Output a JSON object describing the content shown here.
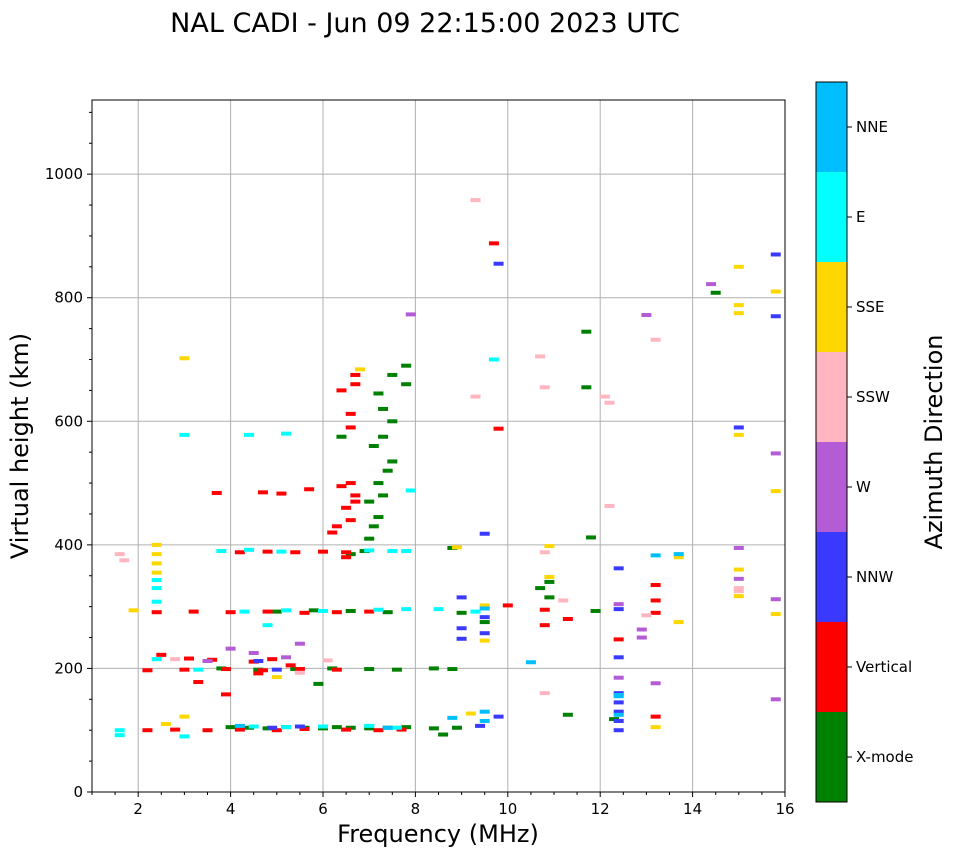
{
  "chart_data": {
    "type": "scatter",
    "title": "NAL CADI - Jun 09 22:15:00 2023 UTC",
    "xlabel": "Frequency (MHz)",
    "ylabel": "Virtual height (km)",
    "xlim": [
      1,
      16
    ],
    "ylim": [
      0,
      1120
    ],
    "xticks": [
      2,
      4,
      6,
      8,
      10,
      12,
      14,
      16
    ],
    "xtick_labels": [
      "2",
      "4",
      "6",
      "8",
      "10",
      "12",
      "14",
      "16"
    ],
    "yticks": [
      0,
      200,
      400,
      600,
      800,
      1000
    ],
    "ytick_labels": [
      "0",
      "200",
      "400",
      "600",
      "800",
      "1000"
    ],
    "grid": true,
    "colorbar": {
      "label": "Azimuth Direction",
      "categories": [
        "X-mode",
        "Vertical",
        "NNW",
        "W",
        "SSW",
        "SSE",
        "E",
        "NNE"
      ],
      "colors": {
        "X-mode": "#008000",
        "Vertical": "#ff0000",
        "NNW": "#3a3aff",
        "W": "#b45cd6",
        "SSW": "#ffb6c1",
        "SSE": "#ffd700",
        "E": "#00ffff",
        "NNE": "#00bfff"
      }
    },
    "series": [
      {
        "name": "X-mode",
        "points": [
          [
            4.0,
            105
          ],
          [
            4.4,
            104
          ],
          [
            4.8,
            103
          ],
          [
            5.2,
            105
          ],
          [
            5.6,
            104
          ],
          [
            6.0,
            103
          ],
          [
            6.3,
            105
          ],
          [
            6.6,
            104
          ],
          [
            7.0,
            103
          ],
          [
            7.4,
            104
          ],
          [
            7.8,
            105
          ],
          [
            8.4,
            103
          ],
          [
            8.9,
            104
          ],
          [
            8.6,
            93
          ],
          [
            11.3,
            125
          ],
          [
            12.3,
            118
          ],
          [
            3.8,
            200
          ],
          [
            4.6,
            198
          ],
          [
            5.4,
            199
          ],
          [
            6.2,
            200
          ],
          [
            7.0,
            199
          ],
          [
            7.6,
            198
          ],
          [
            8.4,
            200
          ],
          [
            8.8,
            199
          ],
          [
            5.9,
            175
          ],
          [
            5.0,
            292
          ],
          [
            5.8,
            294
          ],
          [
            6.6,
            293
          ],
          [
            7.4,
            291
          ],
          [
            9.0,
            290
          ],
          [
            9.5,
            275
          ],
          [
            10.7,
            330
          ],
          [
            10.9,
            315
          ],
          [
            11.9,
            293
          ],
          [
            6.6,
            385
          ],
          [
            6.9,
            390
          ],
          [
            7.0,
            410
          ],
          [
            7.1,
            430
          ],
          [
            7.2,
            445
          ],
          [
            7.0,
            470
          ],
          [
            7.3,
            480
          ],
          [
            7.2,
            500
          ],
          [
            7.4,
            520
          ],
          [
            7.5,
            535
          ],
          [
            7.1,
            560
          ],
          [
            7.3,
            575
          ],
          [
            7.5,
            600
          ],
          [
            7.3,
            620
          ],
          [
            7.2,
            645
          ],
          [
            7.8,
            660
          ],
          [
            7.5,
            675
          ],
          [
            7.8,
            690
          ],
          [
            6.4,
            575
          ],
          [
            8.8,
            395
          ],
          [
            11.8,
            412
          ],
          [
            10.9,
            340
          ],
          [
            11.7,
            655
          ],
          [
            11.7,
            745
          ],
          [
            14.5,
            808
          ]
        ]
      },
      {
        "name": "Vertical",
        "points": [
          [
            2.2,
            100
          ],
          [
            2.8,
            101
          ],
          [
            3.5,
            100
          ],
          [
            4.2,
            101
          ],
          [
            5.0,
            100
          ],
          [
            5.6,
            102
          ],
          [
            6.5,
            101
          ],
          [
            7.2,
            100
          ],
          [
            7.7,
            101
          ],
          [
            2.2,
            197
          ],
          [
            3.0,
            198
          ],
          [
            3.9,
            199
          ],
          [
            4.7,
            197
          ],
          [
            5.5,
            199
          ],
          [
            6.3,
            198
          ],
          [
            2.5,
            222
          ],
          [
            3.1,
            216
          ],
          [
            3.6,
            214
          ],
          [
            4.5,
            211
          ],
          [
            4.9,
            215
          ],
          [
            5.3,
            205
          ],
          [
            3.3,
            178
          ],
          [
            3.9,
            158
          ],
          [
            4.6,
            192
          ],
          [
            2.4,
            291
          ],
          [
            3.2,
            292
          ],
          [
            4.0,
            291
          ],
          [
            4.8,
            292
          ],
          [
            5.6,
            290
          ],
          [
            6.3,
            291
          ],
          [
            7.0,
            292
          ],
          [
            4.2,
            388
          ],
          [
            4.8,
            389
          ],
          [
            5.4,
            388
          ],
          [
            6.0,
            389
          ],
          [
            6.5,
            388
          ],
          [
            6.5,
            380
          ],
          [
            3.7,
            484
          ],
          [
            4.7,
            485
          ],
          [
            5.1,
            483
          ],
          [
            5.7,
            490
          ],
          [
            6.4,
            495
          ],
          [
            6.6,
            500
          ],
          [
            6.7,
            480
          ],
          [
            6.2,
            420
          ],
          [
            6.3,
            430
          ],
          [
            6.6,
            440
          ],
          [
            6.5,
            460
          ],
          [
            6.7,
            470
          ],
          [
            6.6,
            590
          ],
          [
            6.6,
            612
          ],
          [
            6.7,
            660
          ],
          [
            6.7,
            675
          ],
          [
            6.4,
            650
          ],
          [
            9.7,
            888
          ],
          [
            9.8,
            588
          ],
          [
            10.8,
            295
          ],
          [
            10.8,
            270
          ],
          [
            11.3,
            280
          ],
          [
            12.4,
            247
          ],
          [
            13.2,
            290
          ],
          [
            13.2,
            310
          ],
          [
            13.2,
            122
          ],
          [
            10.0,
            302
          ],
          [
            13.2,
            335
          ]
        ]
      },
      {
        "name": "NNW",
        "points": [
          [
            4.9,
            104
          ],
          [
            5.5,
            106
          ],
          [
            9.4,
            107
          ],
          [
            9.8,
            122
          ],
          [
            12.4,
            100
          ],
          [
            12.4,
            115
          ],
          [
            12.4,
            130
          ],
          [
            12.4,
            145
          ],
          [
            12.4,
            160
          ],
          [
            12.4,
            218
          ],
          [
            9.0,
            265
          ],
          [
            9.0,
            315
          ],
          [
            9.5,
            257
          ],
          [
            9.0,
            248
          ],
          [
            9.5,
            283
          ],
          [
            12.4,
            296
          ],
          [
            12.4,
            362
          ],
          [
            9.5,
            418
          ],
          [
            9.8,
            855
          ],
          [
            15.0,
            590
          ],
          [
            15.8,
            770
          ],
          [
            15.8,
            870
          ],
          [
            4.6,
            212
          ],
          [
            5.0,
            198
          ]
        ]
      },
      {
        "name": "W",
        "points": [
          [
            4.0,
            232
          ],
          [
            4.5,
            225
          ],
          [
            5.2,
            218
          ],
          [
            3.5,
            212
          ],
          [
            5.5,
            240
          ],
          [
            12.4,
            304
          ],
          [
            12.4,
            185
          ],
          [
            12.9,
            250
          ],
          [
            13.2,
            176
          ],
          [
            12.9,
            263
          ],
          [
            13.0,
            772
          ],
          [
            14.4,
            822
          ],
          [
            15.0,
            345
          ],
          [
            15.0,
            395
          ],
          [
            15.8,
            548
          ],
          [
            15.8,
            150
          ],
          [
            15.8,
            312
          ],
          [
            7.9,
            773
          ]
        ]
      },
      {
        "name": "SSW",
        "points": [
          [
            1.6,
            385
          ],
          [
            1.7,
            375
          ],
          [
            2.8,
            215
          ],
          [
            5.5,
            193
          ],
          [
            6.1,
            213
          ],
          [
            9.3,
            958
          ],
          [
            9.3,
            640
          ],
          [
            10.7,
            705
          ],
          [
            10.8,
            655
          ],
          [
            10.8,
            388
          ],
          [
            10.8,
            160
          ],
          [
            12.1,
            640
          ],
          [
            12.2,
            630
          ],
          [
            12.2,
            463
          ],
          [
            13.2,
            732
          ],
          [
            13.0,
            286
          ],
          [
            15.0,
            330
          ],
          [
            15.0,
            325
          ],
          [
            11.2,
            310
          ]
        ]
      },
      {
        "name": "SSE",
        "points": [
          [
            2.4,
            400
          ],
          [
            2.4,
            385
          ],
          [
            2.4,
            370
          ],
          [
            2.4,
            355
          ],
          [
            1.9,
            294
          ],
          [
            2.6,
            110
          ],
          [
            3.0,
            702
          ],
          [
            6.8,
            684
          ],
          [
            8.9,
            396
          ],
          [
            10.9,
            348
          ],
          [
            10.9,
            398
          ],
          [
            9.5,
            302
          ],
          [
            9.5,
            245
          ],
          [
            9.2,
            127
          ],
          [
            13.7,
            380
          ],
          [
            13.7,
            275
          ],
          [
            15.0,
            850
          ],
          [
            15.0,
            788
          ],
          [
            15.0,
            775
          ],
          [
            15.0,
            578
          ],
          [
            15.0,
            360
          ],
          [
            15.0,
            317
          ],
          [
            15.8,
            810
          ],
          [
            15.8,
            487
          ],
          [
            15.8,
            288
          ],
          [
            13.2,
            105
          ],
          [
            5.0,
            186
          ],
          [
            3.0,
            122
          ]
        ]
      },
      {
        "name": "E",
        "points": [
          [
            1.6,
            100
          ],
          [
            1.6,
            92
          ],
          [
            2.4,
            343
          ],
          [
            2.4,
            330
          ],
          [
            2.4,
            308
          ],
          [
            3.0,
            578
          ],
          [
            3.3,
            198
          ],
          [
            4.5,
            106
          ],
          [
            5.2,
            105
          ],
          [
            6.0,
            106
          ],
          [
            7.0,
            107
          ],
          [
            7.6,
            104
          ],
          [
            4.3,
            292
          ],
          [
            5.2,
            294
          ],
          [
            6.0,
            293
          ],
          [
            7.2,
            295
          ],
          [
            7.8,
            296
          ],
          [
            3.8,
            390
          ],
          [
            4.4,
            392
          ],
          [
            5.1,
            389
          ],
          [
            7.0,
            391
          ],
          [
            7.5,
            390
          ],
          [
            7.8,
            390
          ],
          [
            8.5,
            296
          ],
          [
            9.3,
            292
          ],
          [
            5.2,
            580
          ],
          [
            4.4,
            578
          ],
          [
            9.7,
            700
          ],
          [
            7.9,
            488
          ],
          [
            3.0,
            90
          ],
          [
            2.4,
            215
          ],
          [
            4.8,
            270
          ]
        ]
      },
      {
        "name": "NNE",
        "points": [
          [
            4.2,
            107
          ],
          [
            7.4,
            104
          ],
          [
            8.8,
            120
          ],
          [
            9.5,
            130
          ],
          [
            9.5,
            115
          ],
          [
            12.4,
            125
          ],
          [
            12.4,
            157
          ],
          [
            12.4,
            155
          ],
          [
            9.5,
            297
          ],
          [
            10.5,
            210
          ],
          [
            13.2,
            383
          ],
          [
            13.7,
            385
          ]
        ]
      }
    ]
  }
}
